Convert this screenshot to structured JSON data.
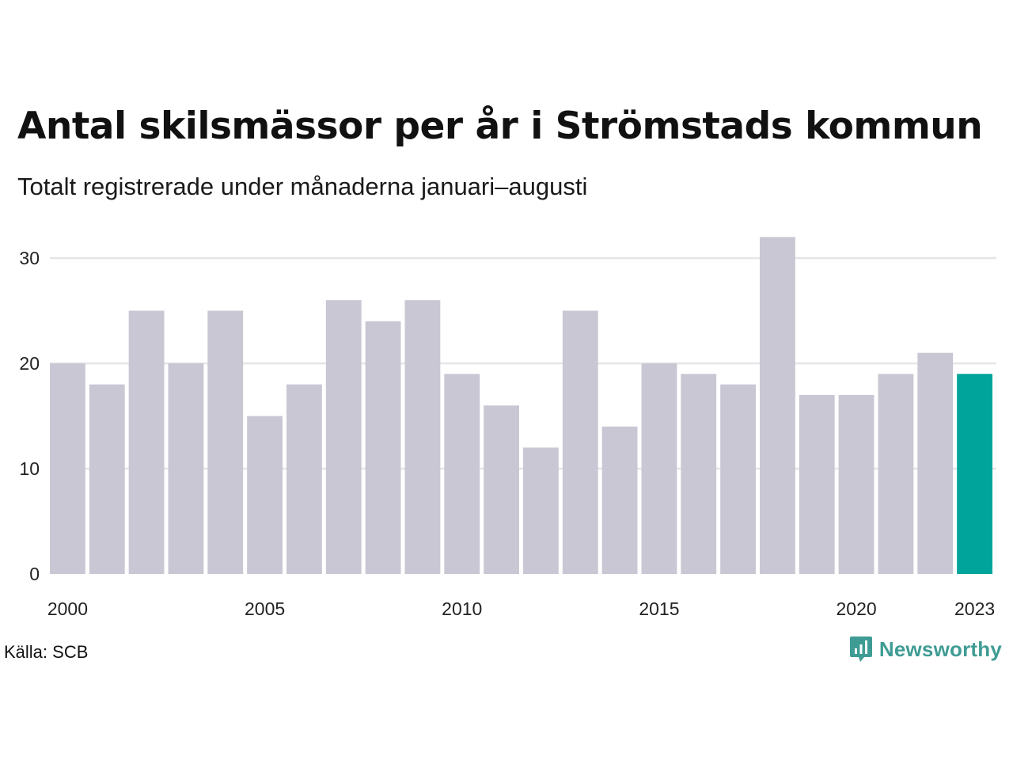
{
  "header": {
    "title": "Antal skilsmässor per år i Strömstads kommun",
    "subtitle": "Totalt registrerade under månaderna januari–augusti"
  },
  "footer": {
    "source": "Källa: SCB",
    "brand": "Newsworthy",
    "brand_icon": "newsworthy-logo-icon"
  },
  "colors": {
    "bar": "#c8c7d3",
    "highlight": "#00a49a",
    "grid": "#e6e6e9",
    "brand": "#3f9c94"
  },
  "chart_data": {
    "type": "bar",
    "title": "Antal skilsmässor per år i Strömstads kommun",
    "subtitle": "Totalt registrerade under månaderna januari–augusti",
    "xlabel": "",
    "ylabel": "",
    "categories": [
      "2000",
      "2001",
      "2002",
      "2003",
      "2004",
      "2005",
      "2006",
      "2007",
      "2008",
      "2009",
      "2010",
      "2011",
      "2012",
      "2013",
      "2014",
      "2015",
      "2016",
      "2017",
      "2018",
      "2019",
      "2020",
      "2021",
      "2022",
      "2023"
    ],
    "values": [
      20,
      18,
      25,
      20,
      25,
      15,
      18,
      26,
      24,
      26,
      19,
      16,
      12,
      25,
      14,
      20,
      19,
      18,
      32,
      17,
      17,
      19,
      21,
      19
    ],
    "highlight": "2023",
    "x_tick_labels": [
      "2000",
      "2005",
      "2010",
      "2015",
      "2020",
      "2023"
    ],
    "y_ticks": [
      0,
      10,
      20,
      30
    ],
    "ylim": [
      0,
      32
    ],
    "grid": true,
    "legend": false
  }
}
